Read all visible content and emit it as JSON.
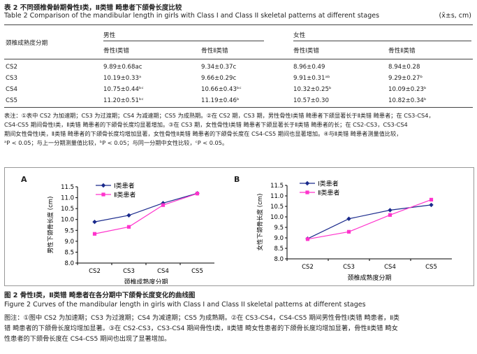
{
  "table": {
    "title_cn": "表 2   不同颈椎骨龄期骨性Ⅰ类，Ⅱ类错 畸患者下颌骨长度比较",
    "title_en": "Table 2   Comparison of the mandibular length in girls with Class I and Class II skeletal patterns at different stages",
    "unit": "(x̄±s, cm)",
    "stub_header": "颈椎成熟度分期",
    "group_male": "男性",
    "group_female": "女性",
    "col_class1": "骨性Ⅰ类错 ",
    "col_class2": "骨性Ⅱ类错 ",
    "rows": [
      {
        "stage": "CS2",
        "m1": "9.89±0.68ac",
        "m2": "9.34±0.37c",
        "f1": "8.96±0.49",
        "f2": "8.94±0.28"
      },
      {
        "stage": "CS3",
        "m1": "10.19±0.33ᵃ",
        "m2": "9.66±0.29c",
        "f1": "9.91±0.31ᵃᵇ",
        "f2": "9.29±0.27ᵇ"
      },
      {
        "stage": "CS4",
        "m1": "10.75±0.44ᵇᶜ",
        "m2": "10.66±0.43ᵇᶜ",
        "f1": "10.32±0.25ᵇ",
        "f2": "10.09±0.23ᵇ"
      },
      {
        "stage": "CS5",
        "m1": "11.20±0.51ᵇᶜ",
        "m2": "11.19±0.46ᵇ",
        "f1": "10.57±0.30",
        "f2": "10.82±0.34ᵇ"
      }
    ],
    "note1": "表注：①表中 CS2 为加速期；CS3 为过渡期；CS4 为减速期；CS5 为成熟期。②在 CS2 期，CS3 期，男性骨性Ⅰ类错 畸患者下颌显著长于Ⅱ类错 畸患者；在 CS3-CS4，",
    "note2": "CS4-CS5 期间骨性Ⅰ类，Ⅱ类错 畸患者的下颌骨长度均显著增加。③在 CS3 期，女性骨性Ⅰ类错 畸患者下颌显著长于Ⅱ类错 畸患者的长；在 CS2-CS3，CS3-CS4",
    "note3": "期间女性骨性Ⅰ类，Ⅱ类错 畸患者的下颌骨长度均增加显著，女性骨性Ⅱ类错 畸患者的下颌骨长度在 CS4-CS5 期间也显著增加。④与Ⅱ类错 畸患者测量值比较，",
    "note4": "ᵃP < 0.05；与上一分期测量值比较，ᵇP < 0.05；与同一分期中女性比较，ᶜP < 0.05。"
  },
  "figure": {
    "caption_cn": "图 2   骨性Ⅰ类，Ⅱ类错 畸患者在各分期中下颌骨长度变化的曲线图",
    "caption_en": "Figure 2   Curves of the mandibular length in girls with Class I and Class II skeletal patterns at different stages",
    "note1": "图注：①图中 CS2 为加速期；CS3 为过渡期；CS4 为减速期；CS5 为成熟期。②在 CS3-CS4，CS4-CS5 期间男性骨性Ⅰ类错 畸患者，Ⅱ类",
    "note2": "错 畸患者的下颌骨长度均增加显著。③在 CS2-CS3，CS3-CS4 期间骨性Ⅰ类，Ⅱ类错 畸女性患者的下颌骨长度均增加显著，骨性Ⅱ类错 畸女",
    "note3": "性患者的下颌骨长度在 CS4-CS5 期间也出现了显著增加。"
  },
  "chart_data": [
    {
      "type": "line",
      "panel": "A",
      "ylabel": "男性下颌骨长度 (cm)",
      "xlabel": "颈椎成熟度分期",
      "categories": [
        "CS2",
        "CS3",
        "CS4",
        "CS5"
      ],
      "ylim": [
        8.0,
        11.5
      ],
      "yticks": [
        "11.5",
        "11.0",
        "10.5",
        "10.0",
        "9.5",
        "9.0",
        "8.5",
        "8.0"
      ],
      "legend": "top-center",
      "series": [
        {
          "name": "Ⅰ类患者",
          "values": [
            9.89,
            10.19,
            10.75,
            11.2
          ],
          "color": "#1a2a8c",
          "marker": "diamond"
        },
        {
          "name": "Ⅱ类患者",
          "values": [
            9.34,
            9.66,
            10.66,
            11.19
          ],
          "color": "#ff33cc",
          "marker": "square"
        }
      ]
    },
    {
      "type": "line",
      "panel": "B",
      "ylabel": "女性下颌骨长度 (cm)",
      "xlabel": "颈椎成熟度分期",
      "categories": [
        "CS2",
        "CS3",
        "CS4",
        "CS5"
      ],
      "ylim": [
        8.0,
        11.5
      ],
      "yticks": [
        "11.5",
        "11.0",
        "10.5",
        "10.0",
        "9.5",
        "9.0",
        "8.5",
        "8.0"
      ],
      "legend": "top-center",
      "series": [
        {
          "name": "Ⅰ类患者",
          "values": [
            8.96,
            9.91,
            10.32,
            10.57
          ],
          "color": "#1a2a8c",
          "marker": "diamond"
        },
        {
          "name": "Ⅱ类患者",
          "values": [
            8.94,
            9.29,
            10.09,
            10.82
          ],
          "color": "#ff33cc",
          "marker": "square"
        }
      ]
    }
  ]
}
